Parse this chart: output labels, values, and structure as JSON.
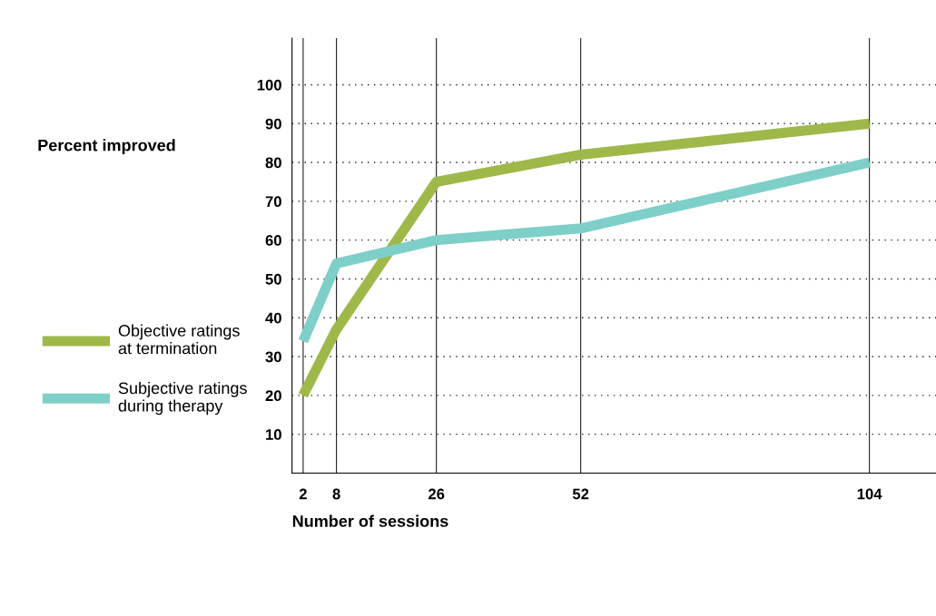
{
  "chart_data": {
    "type": "line",
    "annotations": [
      "Percent improved"
    ],
    "xlabel": "Number of sessions",
    "x": [
      2,
      8,
      26,
      52,
      104
    ],
    "series": [
      {
        "name": "Objective ratings\nat termination",
        "color": "#9fb84a",
        "values": [
          20,
          37,
          75,
          82,
          90
        ]
      },
      {
        "name": "Subjective ratings\nduring therapy",
        "color": "#7ecfc8",
        "values": [
          34,
          54,
          60,
          63,
          80
        ]
      }
    ],
    "xlim": [
      0,
      116
    ],
    "xticks": [
      2,
      8,
      26,
      52,
      104
    ],
    "ylim": [
      0,
      112
    ],
    "yticks": [
      10,
      20,
      30,
      40,
      50,
      60,
      70,
      80,
      90,
      100
    ],
    "grid": true,
    "legend": "left",
    "marker": "none",
    "line_style": "solid"
  }
}
